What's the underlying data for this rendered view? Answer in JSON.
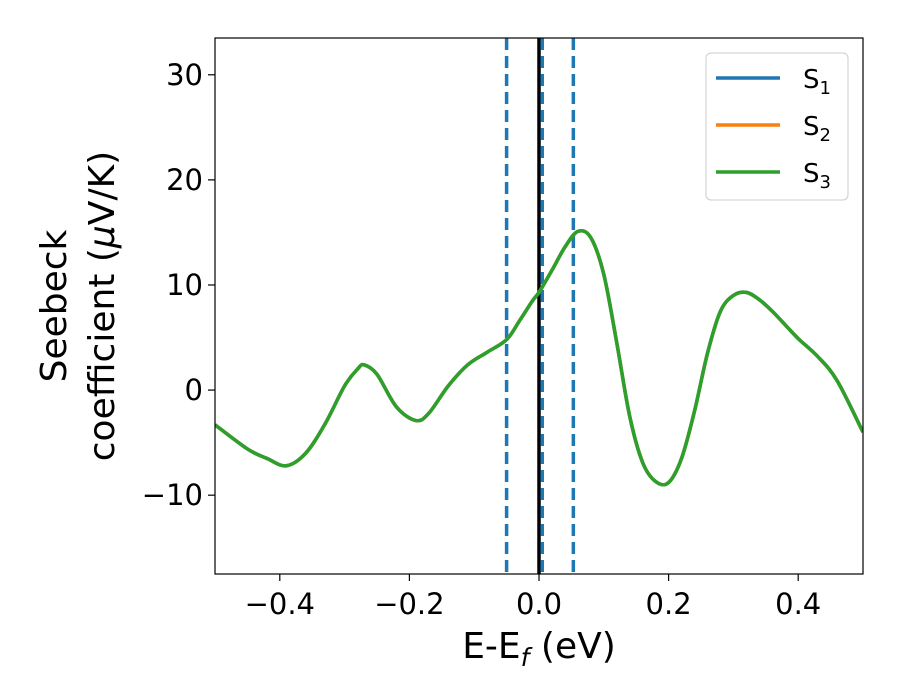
{
  "chart_data": {
    "type": "line",
    "xlabel": {
      "main": "E-E",
      "sub": "f",
      "unit": " (eV)"
    },
    "ylabel": {
      "line1": "Seebeck",
      "line2_main": "coefficient  (",
      "mu": "μ",
      "line2_unit": "V/K)"
    },
    "xlim": [
      -0.5,
      0.5
    ],
    "ylim": [
      -17.5,
      33.5
    ],
    "xticks": [
      -0.4,
      -0.2,
      0.0,
      0.2,
      0.4
    ],
    "xtick_labels": [
      "−0.4",
      "−0.2",
      "0.0",
      "0.2",
      "0.4"
    ],
    "yticks": [
      -10,
      0,
      10,
      20,
      30
    ],
    "ytick_labels": [
      "−10",
      "0",
      "10",
      "20",
      "30"
    ],
    "grid": false,
    "legend_placement": "top-right",
    "vlines": [
      {
        "x": 0.0,
        "style": "solid",
        "color": "#000000"
      },
      {
        "x": -0.05,
        "style": "dashed",
        "color": "#1f77b4"
      },
      {
        "x": 0.005,
        "style": "dashed",
        "color": "#1f77b4"
      },
      {
        "x": 0.053,
        "style": "dashed",
        "color": "#1f77b4"
      }
    ],
    "x": [
      -0.5,
      -0.45,
      -0.42,
      -0.39,
      -0.36,
      -0.33,
      -0.3,
      -0.28,
      -0.27,
      -0.25,
      -0.22,
      -0.19,
      -0.17,
      -0.14,
      -0.11,
      -0.08,
      -0.05,
      -0.03,
      -0.01,
      0.0,
      0.02,
      0.04,
      0.06,
      0.08,
      0.1,
      0.12,
      0.14,
      0.16,
      0.18,
      0.2,
      0.22,
      0.24,
      0.26,
      0.28,
      0.3,
      0.32,
      0.34,
      0.36,
      0.38,
      0.4,
      0.43,
      0.46,
      0.5
    ],
    "series": [
      {
        "name": "S",
        "sub": "1",
        "color": "#1f77b4",
        "values": [
          -3.3,
          -5.6,
          -6.5,
          -7.2,
          -6.0,
          -3.2,
          0.4,
          2.0,
          2.4,
          1.5,
          -1.6,
          -2.9,
          -2.2,
          0.4,
          2.4,
          3.6,
          4.8,
          6.6,
          8.5,
          9.3,
          11.4,
          13.6,
          15.1,
          14.5,
          11.0,
          4.5,
          -2.5,
          -6.9,
          -8.7,
          -8.8,
          -6.5,
          -2.0,
          3.5,
          7.5,
          9.0,
          9.3,
          8.6,
          7.5,
          6.2,
          4.9,
          3.2,
          0.9,
          -4.0
        ]
      },
      {
        "name": "S",
        "sub": "2",
        "color": "#ff7f0e",
        "values": [
          -3.3,
          -5.6,
          -6.5,
          -7.2,
          -6.0,
          -3.2,
          0.4,
          2.0,
          2.4,
          1.5,
          -1.6,
          -2.9,
          -2.2,
          0.4,
          2.4,
          3.6,
          4.8,
          6.6,
          8.5,
          9.3,
          11.4,
          13.6,
          15.1,
          14.5,
          11.0,
          4.5,
          -2.5,
          -6.9,
          -8.7,
          -8.8,
          -6.5,
          -2.0,
          3.5,
          7.5,
          9.0,
          9.3,
          8.6,
          7.5,
          6.2,
          4.9,
          3.2,
          0.9,
          -4.0
        ]
      },
      {
        "name": "S",
        "sub": "3",
        "color": "#2ca02c",
        "values": [
          -3.3,
          -5.6,
          -6.5,
          -7.2,
          -6.0,
          -3.2,
          0.4,
          2.0,
          2.4,
          1.5,
          -1.6,
          -2.9,
          -2.2,
          0.4,
          2.4,
          3.6,
          4.8,
          6.6,
          8.5,
          9.3,
          11.4,
          13.6,
          15.1,
          14.5,
          11.0,
          4.5,
          -2.5,
          -6.9,
          -8.7,
          -8.8,
          -6.5,
          -2.0,
          3.5,
          7.5,
          9.0,
          9.3,
          8.6,
          7.5,
          6.2,
          4.9,
          3.2,
          0.9,
          -4.0
        ]
      }
    ]
  }
}
